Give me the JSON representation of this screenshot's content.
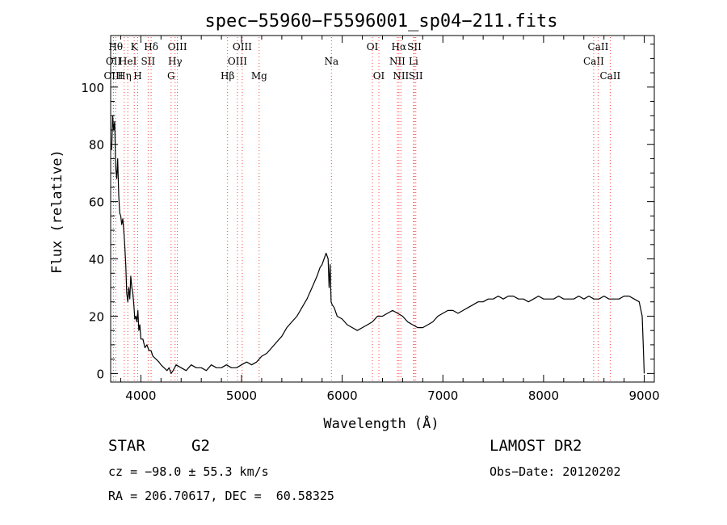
{
  "chart_data": {
    "type": "line",
    "title": "spec−55960−F5596001_sp04−211.fits",
    "xlabel": "Wavelength (Å)",
    "ylabel": "Flux (relative)",
    "xlim": [
      3700,
      9100
    ],
    "ylim": [
      -3,
      118
    ],
    "xticks": [
      4000,
      5000,
      6000,
      7000,
      8000,
      9000
    ],
    "yticks": [
      0,
      20,
      40,
      60,
      80,
      100
    ],
    "grid": false,
    "line_color": "#000000",
    "marker_color": "#ff4040",
    "series": [
      {
        "x": [
          3710,
          3720,
          3730,
          3740,
          3750,
          3760,
          3770,
          3780,
          3790,
          3800,
          3810,
          3820,
          3830,
          3840,
          3850,
          3860,
          3870,
          3880,
          3890,
          3900,
          3910,
          3920,
          3930,
          3940,
          3950,
          3960,
          3970,
          3980,
          3990,
          4000,
          4020,
          4040,
          4060,
          4080,
          4100,
          4120,
          4150,
          4180,
          4200,
          4230,
          4260,
          4280,
          4300,
          4320,
          4350,
          4400,
          4450,
          4500,
          4550,
          4600,
          4650,
          4700,
          4750,
          4800,
          4850,
          4900,
          4950,
          5000,
          5050,
          5100,
          5150,
          5200,
          5250,
          5300,
          5350,
          5400,
          5450,
          5500,
          5550,
          5600,
          5650,
          5700,
          5750,
          5780,
          5800,
          5820,
          5840,
          5860,
          5870,
          5880,
          5890,
          5900,
          5920,
          5950,
          6000,
          6050,
          6100,
          6150,
          6200,
          6250,
          6300,
          6350,
          6400,
          6450,
          6500,
          6550,
          6600,
          6650,
          6700,
          6750,
          6800,
          6850,
          6900,
          6950,
          7000,
          7050,
          7100,
          7150,
          7200,
          7250,
          7300,
          7350,
          7400,
          7450,
          7500,
          7550,
          7600,
          7650,
          7700,
          7750,
          7800,
          7850,
          7900,
          7950,
          8000,
          8050,
          8100,
          8150,
          8200,
          8250,
          8300,
          8350,
          8400,
          8450,
          8500,
          8550,
          8600,
          8650,
          8700,
          8750,
          8800,
          8850,
          8900,
          8950,
          8980,
          8990,
          9000
        ],
        "y": [
          78,
          90,
          85,
          88,
          72,
          68,
          75,
          62,
          56,
          55,
          52,
          54,
          50,
          45,
          38,
          28,
          25,
          30,
          26,
          34,
          30,
          28,
          24,
          19,
          20,
          18,
          22,
          15,
          17,
          12,
          12,
          9,
          10,
          8,
          8,
          6,
          5,
          4,
          3,
          2,
          1,
          2,
          0,
          1,
          3,
          2,
          1,
          3,
          2,
          2,
          1,
          3,
          2,
          2,
          3,
          2,
          2,
          3,
          4,
          3,
          4,
          6,
          7,
          9,
          11,
          13,
          16,
          18,
          20,
          23,
          26,
          30,
          34,
          37,
          38,
          40,
          42,
          40,
          30,
          38,
          25,
          24,
          23,
          20,
          19,
          17,
          16,
          15,
          16,
          17,
          18,
          20,
          20,
          21,
          22,
          21,
          20,
          18,
          17,
          16,
          16,
          17,
          18,
          20,
          21,
          22,
          22,
          21,
          22,
          23,
          24,
          25,
          25,
          26,
          26,
          27,
          26,
          27,
          27,
          26,
          26,
          25,
          26,
          27,
          26,
          26,
          26,
          27,
          26,
          26,
          26,
          27,
          26,
          27,
          26,
          26,
          27,
          26,
          26,
          26,
          27,
          27,
          26,
          25,
          20,
          10,
          0
        ]
      }
    ],
    "line_markers": [
      {
        "x": 3750,
        "label": "Hθ",
        "row": 0
      },
      {
        "x": 3728,
        "label": "OII",
        "row": 1
      },
      {
        "x": 3728,
        "label": "OIII",
        "row": 2
      },
      {
        "x": 3835,
        "label": "Hη",
        "row": 2
      },
      {
        "x": 3870,
        "label": "HeI",
        "row": 1
      },
      {
        "x": 3934,
        "label": "K",
        "row": 0
      },
      {
        "x": 3969,
        "label": "H",
        "row": 2
      },
      {
        "x": 4072,
        "label": "SII",
        "row": 1
      },
      {
        "x": 4102,
        "label": "Hδ",
        "row": 0
      },
      {
        "x": 4300,
        "label": "G",
        "row": 2
      },
      {
        "x": 4340,
        "label": "Hγ",
        "row": 1
      },
      {
        "x": 4363,
        "label": "OIII",
        "row": 0
      },
      {
        "x": 4861,
        "label": "Hβ",
        "row": 2
      },
      {
        "x": 4959,
        "label": "OIII",
        "row": 1
      },
      {
        "x": 5007,
        "label": "OIII",
        "row": 0
      },
      {
        "x": 5175,
        "label": "Mg",
        "row": 2
      },
      {
        "x": 5893,
        "label": "Na",
        "row": 1
      },
      {
        "x": 6300,
        "label": "OI",
        "row": 0
      },
      {
        "x": 6364,
        "label": "OI",
        "row": 2
      },
      {
        "x": 6548,
        "label": "NII",
        "row": 1
      },
      {
        "x": 6563,
        "label": "Hα",
        "row": 0
      },
      {
        "x": 6583,
        "label": "NII",
        "row": 2
      },
      {
        "x": 6708,
        "label": "Li",
        "row": 1
      },
      {
        "x": 6717,
        "label": "SII",
        "row": 0
      },
      {
        "x": 6731,
        "label": "SII",
        "row": 2
      },
      {
        "x": 8498,
        "label": "CaII",
        "row": 1
      },
      {
        "x": 8542,
        "label": "CaII",
        "row": 0
      },
      {
        "x": 8662,
        "label": "CaII",
        "row": 2
      }
    ]
  },
  "info": {
    "object_class": "STAR",
    "subclass": "G2",
    "survey": "LAMOST DR2",
    "cz": "cz = −98.0 ± 55.3 km/s",
    "obs_date": "Obs−Date: 20120202",
    "coords": "RA = 206.70617, DEC =  60.58325"
  }
}
